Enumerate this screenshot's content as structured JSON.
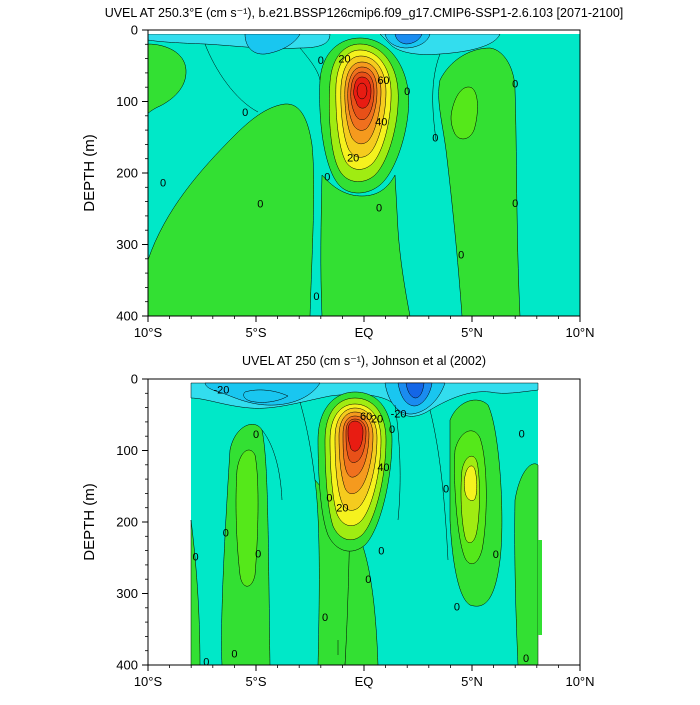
{
  "chart_data": [
    {
      "type": "contour",
      "title": "UVEL AT 250.3°E (cm s⁻¹), b.e21.BSSP126cmip6.f09_g17.CMIP6-SSP1-2.6.103 [2071-2100]",
      "xlabel": "",
      "ylabel": "DEPTH (m)",
      "x_ticks": [
        "10°S",
        "5°S",
        "EQ",
        "5°N",
        "10°N"
      ],
      "x_tick_values": [
        -10,
        -5,
        0,
        5,
        10
      ],
      "y_ticks": [
        "0",
        "100",
        "200",
        "300",
        "400"
      ],
      "y_tick_values": [
        0,
        100,
        200,
        300,
        400
      ],
      "xlim": [
        -10,
        10
      ],
      "ylim": [
        0,
        400
      ],
      "y_inverted": true,
      "data_coverage": {
        "x": [
          -10,
          10
        ],
        "depth": [
          5,
          400
        ]
      },
      "jet_core": {
        "lat": -0.1,
        "depth": 85,
        "max": 80
      },
      "contour_labels": [
        {
          "text": "20",
          "lat": -0.9,
          "depth": 40
        },
        {
          "text": "60",
          "lat": 0.9,
          "depth": 70
        },
        {
          "text": "40",
          "lat": 0.8,
          "depth": 128
        },
        {
          "text": "20",
          "lat": -0.5,
          "depth": 178
        },
        {
          "text": "0",
          "lat": -2.0,
          "depth": 42
        },
        {
          "text": "0",
          "lat": 2.0,
          "depth": 85
        },
        {
          "text": "0",
          "lat": 3.3,
          "depth": 150
        },
        {
          "text": "0",
          "lat": 7.0,
          "depth": 75
        },
        {
          "text": "0",
          "lat": 7.0,
          "depth": 242
        },
        {
          "text": "0",
          "lat": -5.5,
          "depth": 115
        },
        {
          "text": "0",
          "lat": -9.3,
          "depth": 213
        },
        {
          "text": "0",
          "lat": -4.8,
          "depth": 243
        },
        {
          "text": "0",
          "lat": -1.7,
          "depth": 205
        },
        {
          "text": "0",
          "lat": 0.7,
          "depth": 248
        },
        {
          "text": "0",
          "lat": 4.5,
          "depth": 314
        },
        {
          "text": "0",
          "lat": -2.2,
          "depth": 372
        }
      ]
    },
    {
      "type": "contour",
      "title": "UVEL AT 250 (cm s⁻¹), Johnson et al (2002)",
      "xlabel": "",
      "ylabel": "DEPTH (m)",
      "x_ticks": [
        "10°S",
        "5°S",
        "EQ",
        "5°N",
        "10°N"
      ],
      "x_tick_values": [
        -10,
        -5,
        0,
        5,
        10
      ],
      "y_ticks": [
        "0",
        "100",
        "200",
        "300",
        "400"
      ],
      "y_tick_values": [
        0,
        100,
        200,
        300,
        400
      ],
      "xlim": [
        -10,
        10
      ],
      "ylim": [
        0,
        400
      ],
      "y_inverted": true,
      "data_coverage": {
        "x": [
          -8,
          8.2
        ],
        "depth": [
          5,
          400
        ]
      },
      "jet_core": {
        "lat": -0.3,
        "depth": 70,
        "max": 80
      },
      "contour_labels": [
        {
          "text": "-20",
          "lat": -6.6,
          "depth": 15
        },
        {
          "text": "-20",
          "lat": 1.6,
          "depth": 48
        },
        {
          "text": "20",
          "lat": 0.6,
          "depth": 55
        },
        {
          "text": "60",
          "lat": 0.1,
          "depth": 52
        },
        {
          "text": "40",
          "lat": 0.9,
          "depth": 123
        },
        {
          "text": "20",
          "lat": -1.0,
          "depth": 180
        },
        {
          "text": "0",
          "lat": -5.0,
          "depth": 77
        },
        {
          "text": "0",
          "lat": -6.4,
          "depth": 215
        },
        {
          "text": "0",
          "lat": -7.8,
          "depth": 248
        },
        {
          "text": "0",
          "lat": -4.9,
          "depth": 244
        },
        {
          "text": "0",
          "lat": -1.6,
          "depth": 166
        },
        {
          "text": "0",
          "lat": 1.3,
          "depth": 70
        },
        {
          "text": "0",
          "lat": 0.8,
          "depth": 240
        },
        {
          "text": "0",
          "lat": 0.2,
          "depth": 280
        },
        {
          "text": "0",
          "lat": 3.8,
          "depth": 153
        },
        {
          "text": "0",
          "lat": 7.3,
          "depth": 76
        },
        {
          "text": "0",
          "lat": 6.1,
          "depth": 245
        },
        {
          "text": "0",
          "lat": 4.3,
          "depth": 318
        },
        {
          "text": "0",
          "lat": -6.0,
          "depth": 384
        },
        {
          "text": "0",
          "lat": -7.3,
          "depth": 395
        },
        {
          "text": "0",
          "lat": -1.8,
          "depth": 333
        },
        {
          "text": "0",
          "lat": 7.5,
          "depth": 390
        }
      ]
    }
  ],
  "colors": {
    "background_field": "#00e8c8",
    "light_cyan": "#33ddee",
    "cyan": "#19c6f0",
    "blue": "#1a8cf0",
    "deep_blue": "#1466e6",
    "green": "#33e033",
    "light_green": "#55e81a",
    "yellow_green": "#a0ec12",
    "yellow": "#f5f21e",
    "gold": "#f5cb1e",
    "orange": "#f59a1e",
    "dark_orange": "#f0701e",
    "red": "#e81c12",
    "contour_line": "#000000"
  }
}
